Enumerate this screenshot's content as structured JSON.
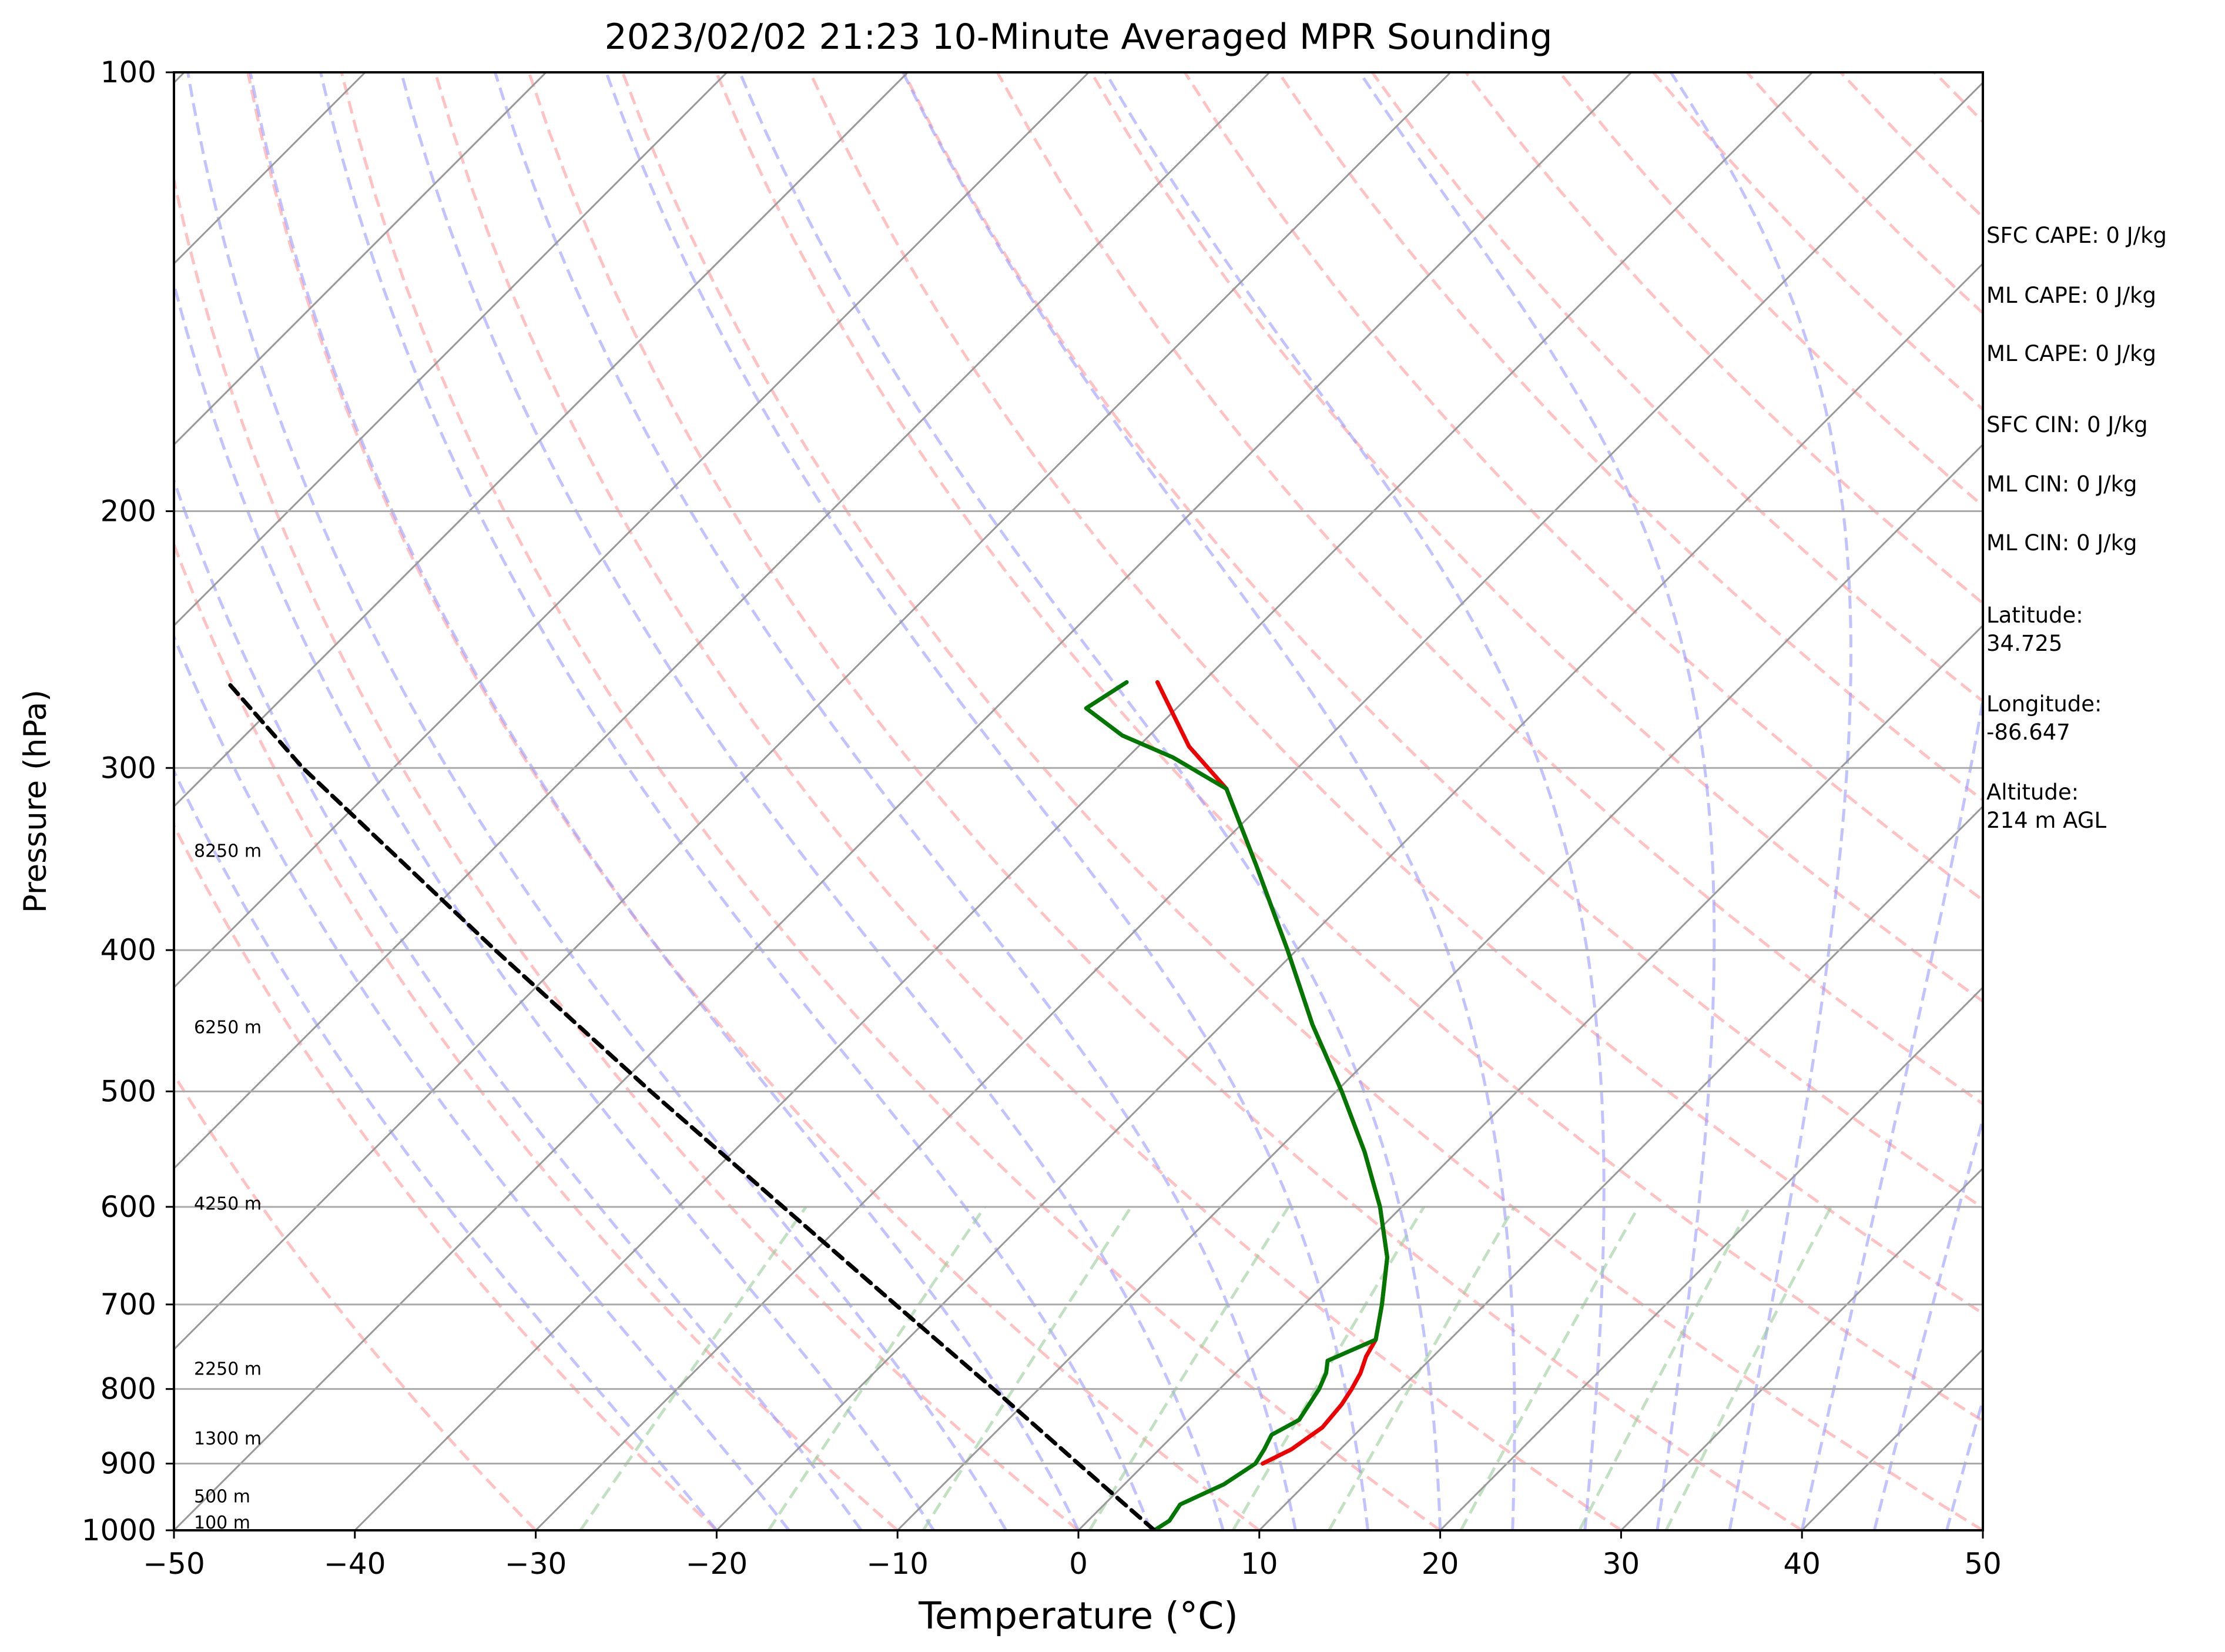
{
  "chart_data": {
    "type": "line",
    "title": "2023/02/02 21:23 10-Minute Averaged MPR Sounding",
    "xlabel": "Temperature (°C)",
    "ylabel": "Pressure (hPa)",
    "xlim": [
      -50,
      50
    ],
    "ylim": [
      1000,
      100
    ],
    "y_scale": "log",
    "skew": "skew-T log-P",
    "x_ticks": [
      -50,
      -40,
      -30,
      -20,
      -10,
      0,
      10,
      20,
      30,
      40,
      50
    ],
    "x_tick_labels": [
      "−50",
      "−40",
      "−30",
      "−20",
      "−10",
      "0",
      "10",
      "20",
      "30",
      "40",
      "50"
    ],
    "y_ticks": [
      100,
      200,
      300,
      400,
      500,
      600,
      700,
      800,
      900,
      1000
    ],
    "y_tick_labels": [
      "100",
      "200",
      "300",
      "400",
      "500",
      "600",
      "700",
      "800",
      "900",
      "1000"
    ],
    "grid": true,
    "series": [
      {
        "key": "temperature",
        "color": "#ee0000",
        "points": [
          {
            "p": 900,
            "t": 6.5
          },
          {
            "p": 880,
            "t": 7.3
          },
          {
            "p": 850,
            "t": 7.8
          },
          {
            "p": 820,
            "t": 7.6
          },
          {
            "p": 800,
            "t": 7.3
          },
          {
            "p": 780,
            "t": 6.9
          },
          {
            "p": 760,
            "t": 6.3
          },
          {
            "p": 740,
            "t": 5.9
          },
          {
            "p": 700,
            "t": 4.3
          },
          {
            "p": 650,
            "t": 2.0
          },
          {
            "p": 600,
            "t": -1.2
          },
          {
            "p": 550,
            "t": -5.1
          },
          {
            "p": 500,
            "t": -9.7
          },
          {
            "p": 450,
            "t": -15.0
          },
          {
            "p": 400,
            "t": -20.5
          },
          {
            "p": 350,
            "t": -26.9
          },
          {
            "p": 310,
            "t": -32.8
          },
          {
            "p": 290,
            "t": -37.2
          },
          {
            "p": 262,
            "t": -42.5
          }
        ]
      },
      {
        "key": "dewpoint",
        "color": "#007700",
        "points": [
          {
            "p": 1000,
            "t": 4.2
          },
          {
            "p": 985,
            "t": 4.5
          },
          {
            "p": 960,
            "t": 4.2
          },
          {
            "p": 930,
            "t": 5.5
          },
          {
            "p": 900,
            "t": 6.1
          },
          {
            "p": 880,
            "t": 5.8
          },
          {
            "p": 860,
            "t": 5.4
          },
          {
            "p": 840,
            "t": 6.1
          },
          {
            "p": 820,
            "t": 5.8
          },
          {
            "p": 800,
            "t": 5.5
          },
          {
            "p": 780,
            "t": 5.0
          },
          {
            "p": 765,
            "t": 4.4
          },
          {
            "p": 740,
            "t": 5.9
          },
          {
            "p": 700,
            "t": 4.3
          },
          {
            "p": 650,
            "t": 2.0
          },
          {
            "p": 600,
            "t": -1.2
          },
          {
            "p": 550,
            "t": -5.1
          },
          {
            "p": 500,
            "t": -9.7
          },
          {
            "p": 450,
            "t": -15.0
          },
          {
            "p": 400,
            "t": -20.5
          },
          {
            "p": 350,
            "t": -26.9
          },
          {
            "p": 310,
            "t": -32.8
          },
          {
            "p": 295,
            "t": -37.5
          },
          {
            "p": 285,
            "t": -41.5
          },
          {
            "p": 273,
            "t": -45.0
          },
          {
            "p": 262,
            "t": -44.2
          }
        ]
      },
      {
        "key": "parcel",
        "color": "#000000",
        "style": "dashed",
        "points": [
          {
            "p": 1000,
            "t": 4.2
          },
          {
            "p": 900,
            "t": -3.7
          },
          {
            "p": 800,
            "t": -12.5
          },
          {
            "p": 700,
            "t": -22.6
          },
          {
            "p": 600,
            "t": -34.2
          },
          {
            "p": 500,
            "t": -47.9
          },
          {
            "p": 400,
            "t": -64.3
          },
          {
            "p": 300,
            "t": -85.0
          },
          {
            "p": 262,
            "t": -93.9
          }
        ]
      }
    ],
    "background_lines": {
      "dry_adiabat_color": "#ff9999",
      "moist_adiabat_color": "#9999ff",
      "mixing_ratio_color": "#99cc99",
      "isotherm_color": "#999999",
      "isotherm_every": 10
    },
    "height_labels": [
      {
        "p": 988,
        "text": "100 m"
      },
      {
        "p": 948,
        "text": "500 m"
      },
      {
        "p": 865,
        "text": "1300 m"
      },
      {
        "p": 775,
        "text": "2250 m"
      },
      {
        "p": 597,
        "text": "4250 m"
      },
      {
        "p": 452,
        "text": "6250 m"
      },
      {
        "p": 342,
        "text": "8250 m"
      }
    ]
  },
  "sidebar": {
    "sfc_cape": "SFC CAPE: 0 J/kg",
    "ml_cape_1": "ML CAPE: 0 J/kg",
    "ml_cape_2": "ML CAPE: 0 J/kg",
    "sfc_cin": "SFC CIN: 0 J/kg",
    "ml_cin_1": "ML CIN: 0 J/kg",
    "ml_cin_2": "ML CIN: 0 J/kg",
    "latitude": "Latitude:\n34.725",
    "longitude": "Longitude:\n-86.647",
    "altitude": "Altitude:\n214 m AGL"
  }
}
